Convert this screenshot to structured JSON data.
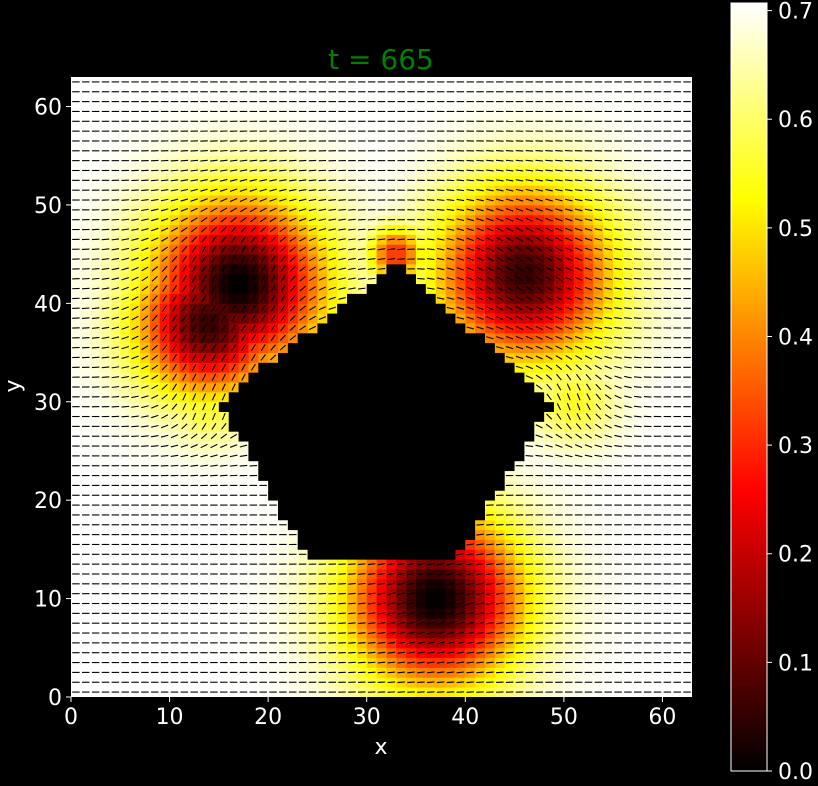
{
  "chart_data": {
    "type": "heatmap",
    "title": "t = 665",
    "title_color": "#008000",
    "xlabel": "x",
    "ylabel": "y",
    "xlim": [
      0,
      63
    ],
    "ylim": [
      0,
      63
    ],
    "grid": 63,
    "x_ticks": [
      0,
      10,
      20,
      30,
      40,
      50,
      60
    ],
    "y_ticks": [
      0,
      10,
      20,
      30,
      40,
      50,
      60
    ],
    "colormap": "hot",
    "colorbar": {
      "min": 0.0,
      "max": 0.707,
      "ticks": [
        0.0,
        0.1,
        0.2,
        0.3,
        0.4,
        0.5,
        0.6,
        0.7
      ],
      "tick_labels": [
        "0.0",
        "0.1",
        "0.2",
        "0.3",
        "0.4",
        "0.5",
        "0.6",
        "0.7"
      ]
    },
    "field_max": 0.707,
    "obstacle": {
      "shape": "diamond",
      "vertices": [
        [
          33,
          44
        ],
        [
          49,
          30
        ],
        [
          39,
          14
        ],
        [
          24,
          14
        ],
        [
          15,
          30
        ]
      ]
    },
    "background_field_angle_deg": 0,
    "defects": [
      {
        "x": 17,
        "y": 42,
        "amplitude": 0.0,
        "radius": 6,
        "angle_deg": 60
      },
      {
        "x": 14,
        "y": 38,
        "amplitude": 0.05,
        "radius": 5,
        "angle_deg": 55
      },
      {
        "x": 46,
        "y": 43,
        "amplitude": 0.05,
        "radius": 6,
        "angle_deg": -35
      },
      {
        "x": 37,
        "y": 10,
        "amplitude": 0.0,
        "radius": 6,
        "angle_deg": 15
      },
      {
        "x": 33,
        "y": 45,
        "amplitude": 0.3,
        "radius": 2,
        "angle_deg": 10
      },
      {
        "x": 14,
        "y": 30,
        "amplitude": 0.55,
        "radius": 3,
        "angle_deg": 70
      },
      {
        "x": 51,
        "y": 30,
        "amplitude": 0.55,
        "radius": 3,
        "angle_deg": -70
      }
    ]
  }
}
